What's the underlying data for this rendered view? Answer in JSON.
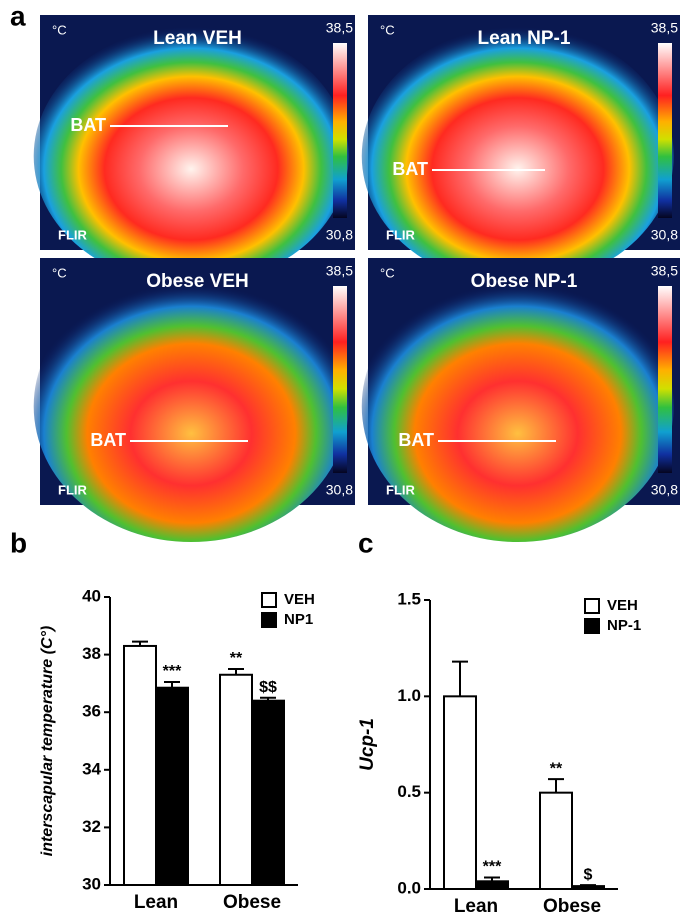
{
  "panel_labels": [
    "a",
    "b",
    "c"
  ],
  "thermal_images": [
    {
      "title": "Lean VEH",
      "region": "BAT",
      "unit": "°C",
      "scale_max": "38,5",
      "scale_min": "30,8",
      "brand": "FLIR"
    },
    {
      "title": "Lean NP-1",
      "region": "BAT",
      "unit": "°C",
      "scale_max": "38,5",
      "scale_min": "30,8",
      "brand": "FLIR"
    },
    {
      "title": "Obese VEH",
      "region": "BAT",
      "unit": "°C",
      "scale_max": "38,5",
      "scale_min": "30,8",
      "brand": "FLIR"
    },
    {
      "title": "Obese NP-1",
      "region": "BAT",
      "unit": "°C",
      "scale_max": "38,5",
      "scale_min": "30,8",
      "brand": "FLIR"
    }
  ],
  "chart_data": [
    {
      "type": "bar",
      "y_label": "interscapular temperature (C°)",
      "categories": [
        "Lean",
        "Obese"
      ],
      "series": [
        {
          "name": "VEH",
          "color": "#ffffff",
          "values": [
            38.3,
            37.3
          ],
          "errors": [
            0.15,
            0.2
          ],
          "annotations": [
            null,
            "**"
          ]
        },
        {
          "name": "NP1",
          "color": "#000000",
          "values": [
            36.85,
            36.4
          ],
          "errors": [
            0.2,
            0.1
          ],
          "annotations": [
            "***",
            "$$"
          ]
        }
      ],
      "ylim": [
        30,
        40
      ],
      "yticks": [
        30,
        32,
        34,
        36,
        38,
        40
      ],
      "legend": "upper right"
    },
    {
      "type": "bar",
      "y_label": "Ucp-1",
      "categories": [
        "Lean",
        "Obese"
      ],
      "series": [
        {
          "name": "VEH",
          "color": "#ffffff",
          "values": [
            1.0,
            0.5
          ],
          "errors": [
            0.18,
            0.07
          ],
          "annotations": [
            null,
            "**"
          ]
        },
        {
          "name": "NP-1",
          "color": "#000000",
          "values": [
            0.04,
            0.015
          ],
          "errors": [
            0.02,
            0.005
          ],
          "annotations": [
            "***",
            "$"
          ]
        }
      ],
      "ylim": [
        0,
        1.5
      ],
      "yticks": [
        {
          "value": 0,
          "label": "0.0"
        },
        {
          "value": 0.5,
          "label": "0.5"
        },
        {
          "value": 1,
          "label": "1.0"
        },
        {
          "value": 1.5,
          "label": "1.5"
        }
      ],
      "legend": "upper right"
    }
  ]
}
